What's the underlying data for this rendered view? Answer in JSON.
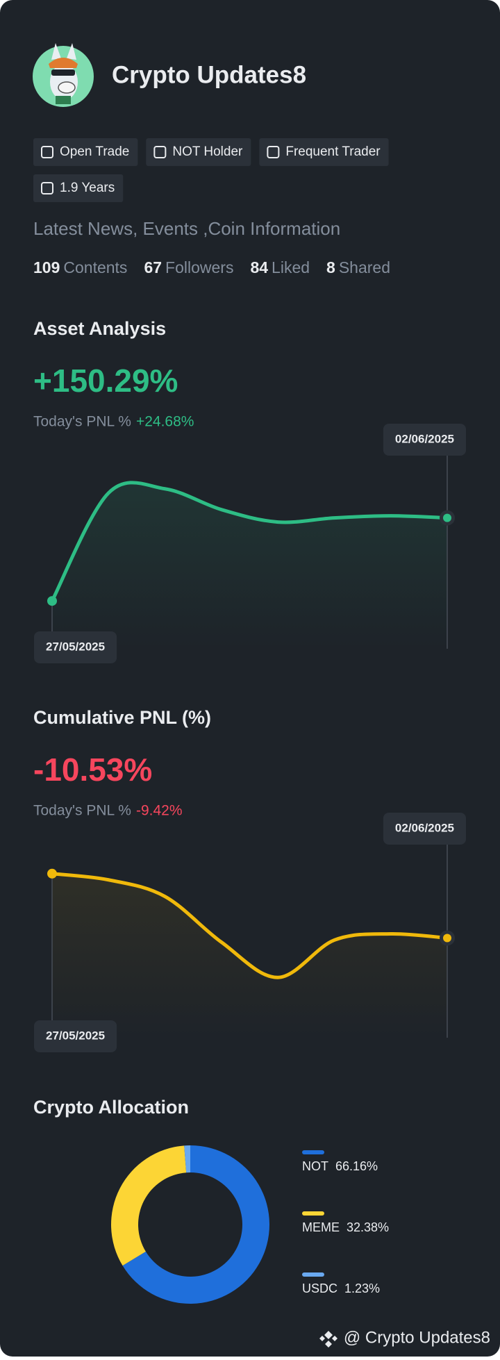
{
  "profile": {
    "name": "Crypto Updates8",
    "tags": [
      "Open Trade",
      "NOT Holder",
      "Frequent Trader",
      "1.9 Years"
    ],
    "bio": "Latest News, Events ,Coin Information",
    "stats": [
      {
        "value": "109",
        "label": "Contents"
      },
      {
        "value": "67",
        "label": "Followers"
      },
      {
        "value": "84",
        "label": "Liked"
      },
      {
        "value": "8",
        "label": "Shared"
      }
    ]
  },
  "chart_data": [
    {
      "type": "line",
      "title": "Asset Analysis",
      "headline": "+150.29%",
      "pnl_label": "Today's PNL %",
      "pnl": "+24.68%",
      "pnl_color": "#2ebd85",
      "categories": [
        "27/05/2025",
        null,
        null,
        null,
        null,
        null,
        null,
        "02/06/2025"
      ],
      "values": [
        23,
        75,
        77,
        67,
        61,
        63,
        64,
        63
      ],
      "color": "#2ebd85",
      "ylim": [
        0,
        100
      ]
    },
    {
      "type": "line",
      "title": "Cumulative PNL (%)",
      "headline": "-10.53%",
      "pnl_label": "Today's PNL %",
      "pnl": "-9.42%",
      "pnl_color": "#f6465d",
      "categories": [
        "27/05/2025",
        null,
        null,
        null,
        null,
        null,
        null,
        "02/06/2025"
      ],
      "values": [
        79,
        76,
        68,
        46,
        29,
        47,
        50,
        48
      ],
      "color": "#f0b90b",
      "ylim": [
        0,
        100
      ]
    },
    {
      "type": "donut",
      "title": "Crypto Allocation",
      "categories": [
        "NOT",
        "MEME",
        "USDC"
      ],
      "values": [
        66.16,
        32.38,
        1.23
      ],
      "value_labels": [
        "66.16%",
        "32.38%",
        "1.23%"
      ],
      "colors": [
        "#1f6fdb",
        "#fcd535",
        "#6aa9f0"
      ]
    }
  ],
  "footer": "@ Crypto Updates8"
}
